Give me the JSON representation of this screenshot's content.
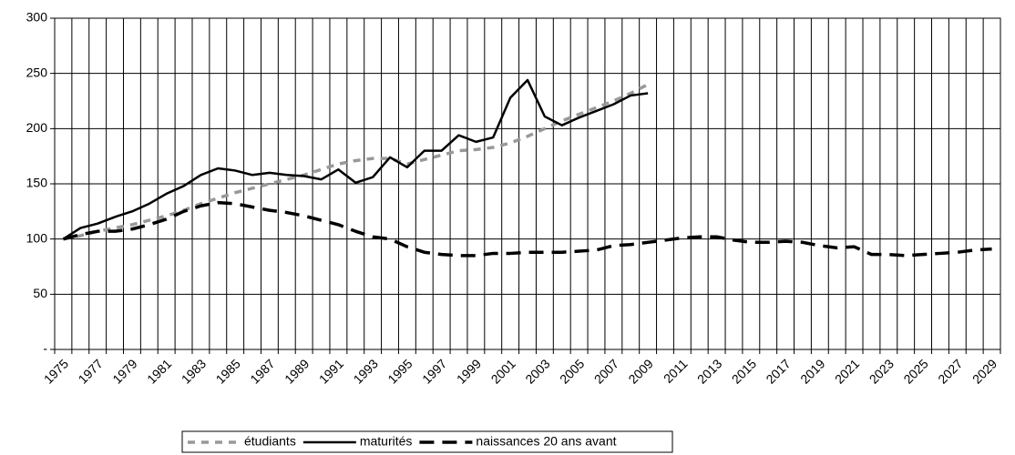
{
  "chart_data": {
    "type": "line",
    "categories": [
      1975,
      null,
      1977,
      null,
      1979,
      null,
      1981,
      null,
      1983,
      null,
      1985,
      null,
      1987,
      null,
      1989,
      null,
      1991,
      null,
      1993,
      null,
      1995,
      null,
      1997,
      null,
      1999,
      null,
      2001,
      null,
      2003,
      null,
      2005,
      null,
      2007,
      null,
      2009,
      null,
      2011,
      null,
      2013,
      null,
      2015,
      null,
      2017,
      null,
      2019,
      null,
      2021,
      null,
      2023,
      null,
      2025,
      null,
      2027,
      null,
      2029
    ],
    "series": [
      {
        "name": "étudiants",
        "color": "#999999",
        "values": [
          100,
          103,
          107,
          110,
          113,
          117,
          121,
          126,
          132,
          137,
          142,
          146,
          150,
          154,
          158,
          163,
          168,
          171,
          173,
          173,
          168,
          172,
          176,
          180,
          181,
          183,
          187,
          193,
          200,
          207,
          213,
          219,
          225,
          232,
          240,
          null,
          null,
          null,
          null,
          null,
          null,
          null,
          null,
          null,
          null,
          null,
          null,
          null,
          null,
          null,
          null,
          null,
          null,
          null,
          null
        ]
      },
      {
        "name": "maturités",
        "color": "#000000",
        "values": [
          100,
          110,
          114,
          120,
          125,
          132,
          141,
          148,
          158,
          164,
          162,
          158,
          160,
          158,
          157,
          154,
          163,
          151,
          156,
          174,
          165,
          180,
          180,
          194,
          188,
          192,
          228,
          244,
          211,
          203,
          210,
          216,
          222,
          230,
          232,
          null,
          null,
          null,
          null,
          null,
          null,
          null,
          null,
          null,
          null,
          null,
          null,
          null,
          null,
          null,
          null,
          null,
          null,
          null,
          null
        ]
      },
      {
        "name": "naissances 20 ans avant",
        "color": "#000000",
        "values": [
          100,
          104,
          107,
          107,
          109,
          113,
          118,
          125,
          130,
          133,
          132,
          129,
          126,
          124,
          121,
          117,
          113,
          107,
          102,
          100,
          93,
          88,
          86,
          85,
          85,
          87,
          87,
          88,
          88,
          88,
          89,
          90,
          94,
          95,
          97,
          99,
          101,
          102,
          102,
          99,
          97,
          97,
          98,
          97,
          94,
          92,
          93,
          86,
          86,
          85,
          86,
          87,
          88,
          90,
          91
        ]
      }
    ],
    "ylim": [
      0,
      300
    ],
    "yticks": [
      {
        "value": 0,
        "label": "-"
      },
      50,
      100,
      150,
      200,
      250,
      300
    ],
    "grid": true
  }
}
